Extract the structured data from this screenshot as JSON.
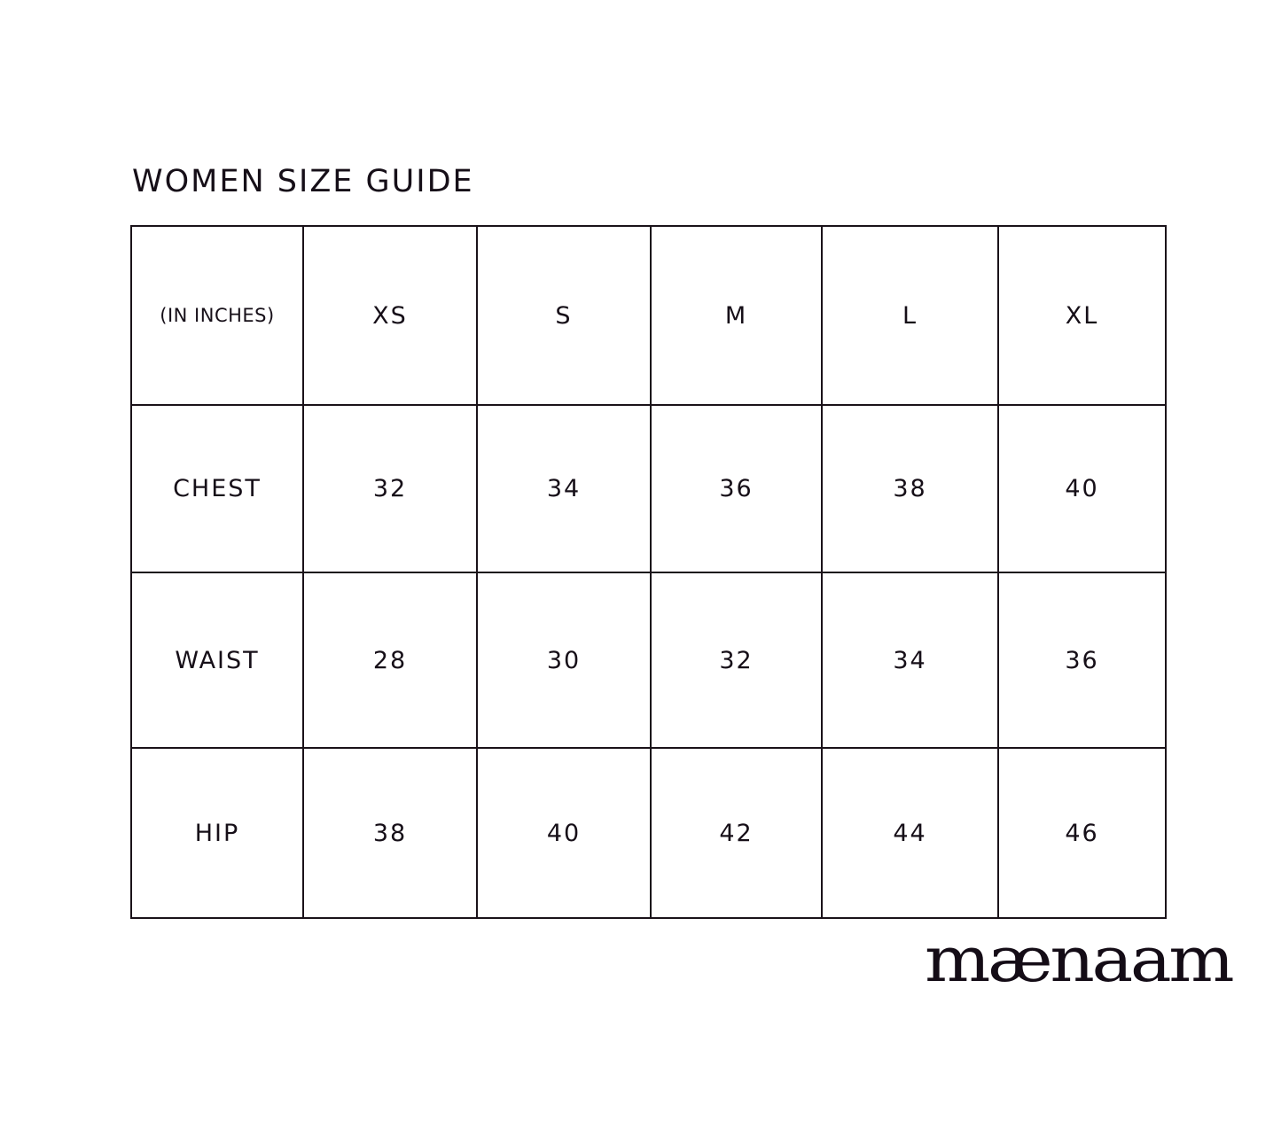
{
  "title": "WOMEN SIZE GUIDE",
  "table": {
    "unit_label": "(IN INCHES)",
    "sizes": [
      "XS",
      "S",
      "M",
      "L",
      "XL"
    ],
    "rows": [
      {
        "label": "CHEST",
        "values": [
          "32",
          "34",
          "36",
          "38",
          "40"
        ]
      },
      {
        "label": "WAIST",
        "values": [
          "28",
          "30",
          "32",
          "34",
          "36"
        ]
      },
      {
        "label": "HIP",
        "values": [
          "38",
          "40",
          "42",
          "44",
          "46"
        ]
      }
    ]
  },
  "brand": {
    "logo_text": "mænaam"
  },
  "colors": {
    "ink": "#160f18",
    "background": "#ffffff"
  }
}
